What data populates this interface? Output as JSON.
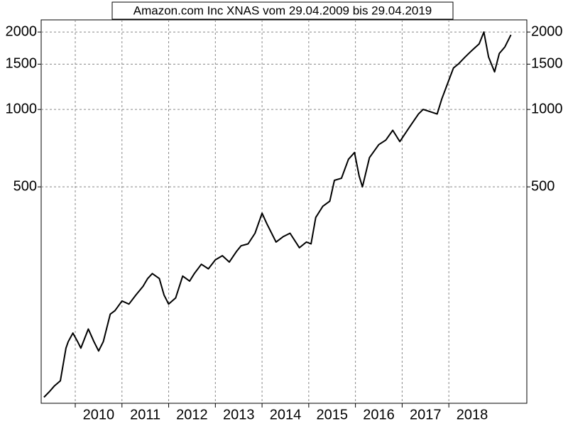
{
  "chart_data": {
    "type": "line",
    "title": "Amazon.com Inc XNAS vom 29.04.2009 bis 29.04.2019",
    "log_scale": true,
    "grid": true,
    "x": [
      2009.33,
      2009.45,
      2009.55,
      2009.68,
      2009.8,
      2009.85,
      2009.95,
      2010.05,
      2010.12,
      2010.28,
      2010.4,
      2010.5,
      2010.6,
      2010.75,
      2010.85,
      2011.0,
      2011.15,
      2011.3,
      2011.45,
      2011.55,
      2011.65,
      2011.8,
      2011.9,
      2012.0,
      2012.15,
      2012.3,
      2012.45,
      2012.55,
      2012.7,
      2012.85,
      2013.0,
      2013.15,
      2013.3,
      2013.45,
      2013.55,
      2013.7,
      2013.85,
      2014.0,
      2014.1,
      2014.3,
      2014.45,
      2014.6,
      2014.8,
      2014.95,
      2015.05,
      2015.15,
      2015.3,
      2015.45,
      2015.55,
      2015.7,
      2015.85,
      2015.98,
      2016.08,
      2016.15,
      2016.3,
      2016.5,
      2016.65,
      2016.8,
      2016.95,
      2017.15,
      2017.35,
      2017.45,
      2017.6,
      2017.75,
      2017.85,
      2018.0,
      2018.1,
      2018.2,
      2018.35,
      2018.5,
      2018.65,
      2018.75,
      2018.85,
      2018.98,
      2019.08,
      2019.2,
      2019.33
    ],
    "values": [
      76,
      80,
      84,
      88,
      118,
      125,
      135,
      125,
      118,
      140,
      125,
      115,
      125,
      160,
      165,
      180,
      175,
      190,
      205,
      220,
      230,
      220,
      190,
      175,
      185,
      225,
      215,
      230,
      250,
      240,
      260,
      270,
      255,
      280,
      295,
      300,
      330,
      395,
      360,
      305,
      320,
      330,
      290,
      305,
      300,
      380,
      420,
      440,
      530,
      540,
      640,
      680,
      550,
      500,
      650,
      730,
      760,
      830,
      750,
      850,
      960,
      1000,
      980,
      960,
      1100,
      1300,
      1450,
      1500,
      1600,
      1700,
      1800,
      2000,
      1600,
      1400,
      1650,
      1750,
      1950
    ],
    "xlim": [
      2009.27,
      2019.67
    ],
    "xticks": [
      2010,
      2011,
      2012,
      2013,
      2014,
      2015,
      2016,
      2017,
      2018
    ],
    "ylim": [
      72,
      2230
    ],
    "yticks": [
      500,
      1000,
      1500,
      2000
    ],
    "color": "#000000"
  }
}
